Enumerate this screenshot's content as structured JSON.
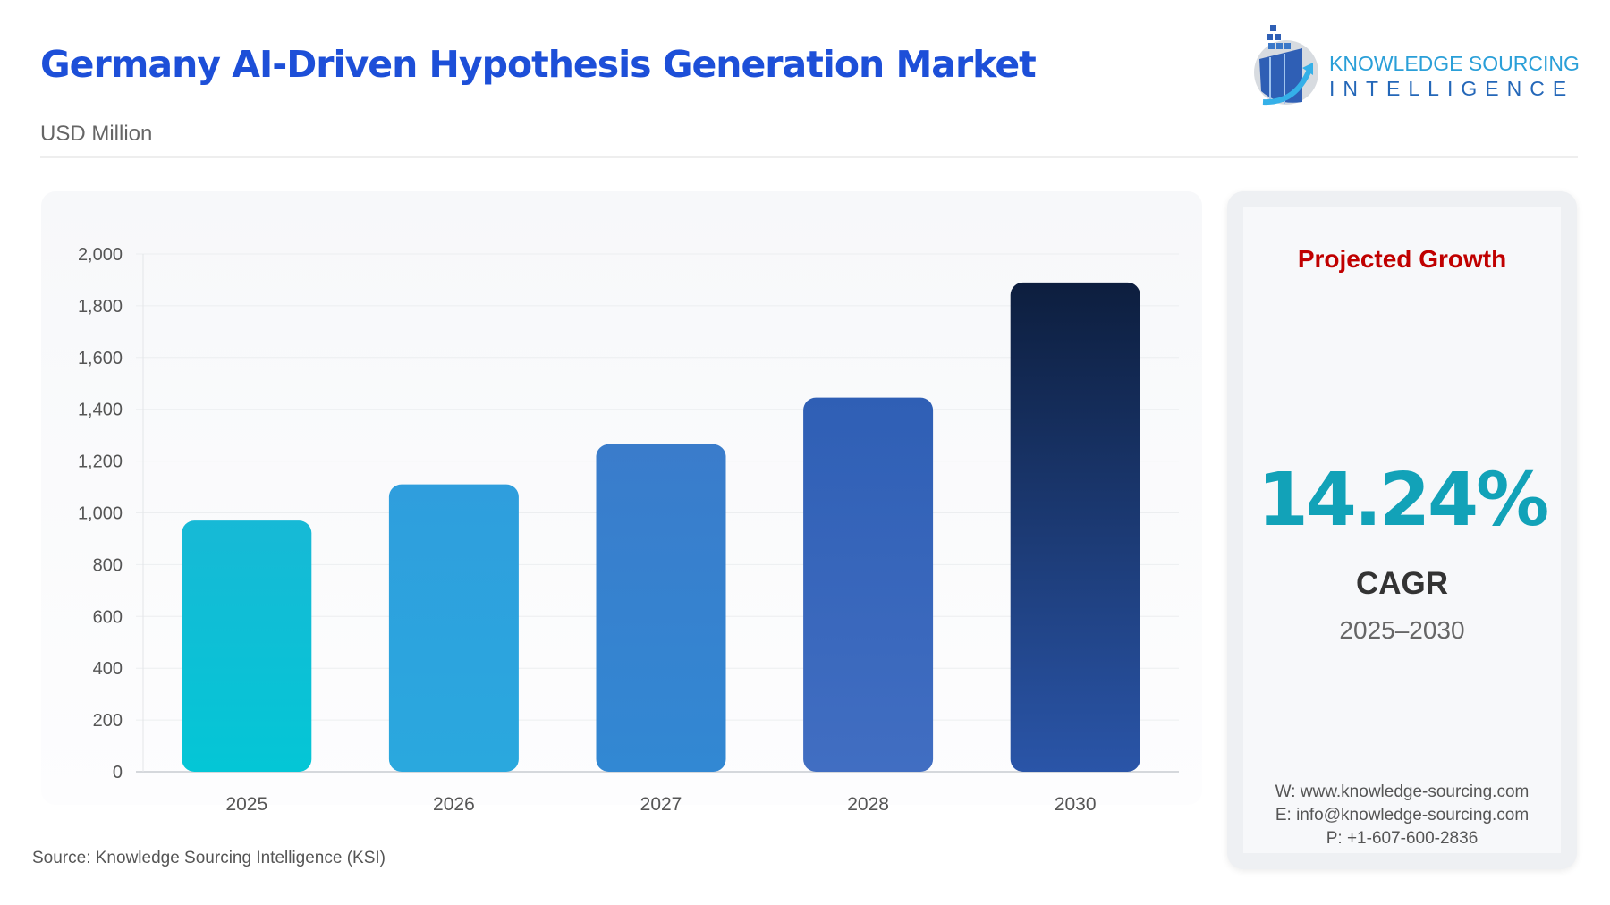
{
  "header": {
    "title": "Germany AI-Driven Hypothesis Generation Market",
    "unit": "USD Million"
  },
  "logo": {
    "line1": "KNOWLEDGE SOURCING",
    "line2": "INTELLIGENCE"
  },
  "chart_data": {
    "type": "bar",
    "categories": [
      "2025",
      "2026",
      "2027",
      "2028",
      "2030"
    ],
    "values": [
      970,
      1110,
      1265,
      1445,
      1890
    ],
    "ylim": [
      0,
      2000
    ],
    "yticks": [
      "0",
      "200",
      "400",
      "600",
      "800",
      "1,000",
      "1,200",
      "1,400",
      "1,600",
      "1,800",
      "2,000"
    ],
    "grid": true,
    "colors": [
      [
        "#17b9d6",
        "#04c6d6"
      ],
      [
        "#2f9edd",
        "#2aa8de"
      ],
      [
        "#3a7ccb",
        "#3288d3"
      ],
      [
        "#2f5fb5",
        "#416ec2"
      ],
      [
        "#0d1e3e",
        "#2a55a8"
      ]
    ]
  },
  "source": "Source: Knowledge Sourcing Intelligence (KSI)",
  "panel": {
    "heading": "Projected Growth",
    "cagr_value": "14.24%",
    "cagr_label": "CAGR",
    "period": "2025–2030",
    "website": "W: www.knowledge-sourcing.com",
    "email": "E: info@knowledge-sourcing.com",
    "phone": "P: +1-607-600-2836"
  }
}
